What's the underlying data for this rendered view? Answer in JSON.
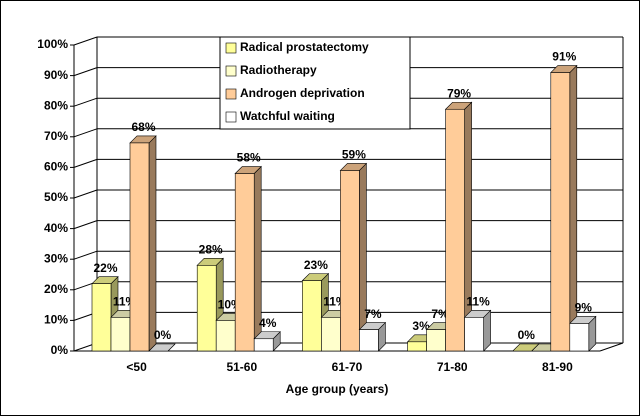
{
  "chart_data": {
    "type": "bar3d",
    "x_label": "Age group (years)",
    "categories": [
      "<50",
      "51-60",
      "61-70",
      "71-80",
      "81-90"
    ],
    "series": [
      {
        "name": "Radical prostatectomy",
        "color": "#ffff99",
        "values": [
          22,
          28,
          23,
          3,
          0
        ],
        "value_labels": [
          "22%",
          "28%",
          "23%",
          "3%",
          "0%"
        ]
      },
      {
        "name": "Radiotherapy",
        "color": "#ffffcc",
        "values": [
          11,
          10,
          11,
          7,
          0
        ],
        "value_labels": [
          "11%",
          "10%",
          "11%",
          "7%",
          null
        ]
      },
      {
        "name": "Androgen deprivation",
        "color": "#ffcc99",
        "values": [
          68,
          58,
          59,
          79,
          91
        ],
        "value_labels": [
          "68%",
          "58%",
          "59%",
          "79%",
          "91%"
        ]
      },
      {
        "name": "Watchful waiting",
        "color": "#ffffff",
        "values": [
          0,
          4,
          7,
          11,
          9
        ],
        "value_labels": [
          "0%",
          "4%",
          "7%",
          "11%",
          "9%"
        ]
      }
    ],
    "ylim": [
      0,
      100
    ],
    "yticks": [
      {
        "value": 0,
        "label": "0%"
      },
      {
        "value": 10,
        "label": "10%"
      },
      {
        "value": 20,
        "label": "20%"
      },
      {
        "value": 30,
        "label": "30%"
      },
      {
        "value": 40,
        "label": "40%"
      },
      {
        "value": 50,
        "label": "50%"
      },
      {
        "value": 60,
        "label": "60%"
      },
      {
        "value": 70,
        "label": "70%"
      },
      {
        "value": 80,
        "label": "80%"
      },
      {
        "value": 90,
        "label": "90%"
      },
      {
        "value": 100,
        "label": "100%"
      }
    ],
    "grid": true
  }
}
